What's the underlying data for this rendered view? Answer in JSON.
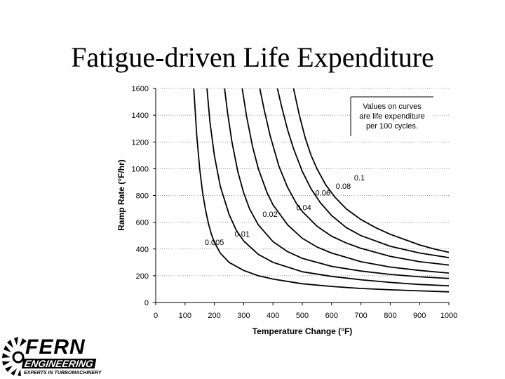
{
  "slide": {
    "title": "Fatigue-driven Life Expenditure"
  },
  "logo": {
    "name": "FERN",
    "subtitle": "ENGINEERING",
    "tagline": "EXPERTS IN TURBOMACHINERY"
  },
  "chart_data": {
    "type": "line",
    "xlabel": "Temperature Change (°F)",
    "ylabel": "Ramp Rate (°F/hr)",
    "xlim": [
      0,
      1000
    ],
    "ylim": [
      0,
      1600
    ],
    "xticks": [
      0,
      100,
      200,
      300,
      400,
      500,
      600,
      700,
      800,
      900,
      1000
    ],
    "yticks": [
      0,
      200,
      400,
      600,
      800,
      1000,
      1200,
      1400,
      1600
    ],
    "grid": "horizontal dotted",
    "annotation": [
      "Values on curves",
      "are life expenditure",
      "per 100 cycles."
    ],
    "series": [
      {
        "name": "0.005",
        "x": [
          130,
          140,
          150,
          160,
          170,
          180,
          190,
          200,
          220,
          250,
          300,
          350,
          400,
          500,
          600,
          700,
          800,
          900,
          1000
        ],
        "y": [
          1600,
          1250,
          1000,
          820,
          690,
          590,
          510,
          450,
          370,
          300,
          240,
          200,
          175,
          140,
          120,
          105,
          95,
          87,
          80
        ]
      },
      {
        "name": "0.01",
        "x": [
          175,
          185,
          200,
          220,
          250,
          275,
          300,
          350,
          400,
          500,
          600,
          700,
          800,
          900,
          1000
        ],
        "y": [
          1600,
          1350,
          1100,
          870,
          660,
          540,
          460,
          360,
          300,
          230,
          195,
          170,
          150,
          135,
          125
        ]
      },
      {
        "name": "0.02",
        "x": [
          235,
          245,
          260,
          280,
          300,
          320,
          350,
          400,
          450,
          500,
          600,
          700,
          800,
          900,
          1000
        ],
        "y": [
          1600,
          1420,
          1200,
          980,
          820,
          700,
          580,
          455,
          380,
          330,
          270,
          235,
          210,
          192,
          180
        ]
      },
      {
        "name": "0.04",
        "x": [
          295,
          310,
          330,
          350,
          380,
          400,
          450,
          500,
          550,
          600,
          700,
          800,
          900,
          1000
        ],
        "y": [
          1600,
          1390,
          1170,
          1000,
          820,
          730,
          580,
          480,
          415,
          370,
          305,
          265,
          240,
          220
        ]
      },
      {
        "name": "0.06",
        "x": [
          355,
          370,
          390,
          420,
          450,
          480,
          500,
          550,
          600,
          650,
          700,
          800,
          900,
          1000
        ],
        "y": [
          1600,
          1440,
          1250,
          1020,
          860,
          740,
          680,
          570,
          495,
          445,
          405,
          345,
          305,
          280
        ]
      },
      {
        "name": "0.08",
        "x": [
          415,
          430,
          450,
          470,
          500,
          530,
          560,
          600,
          650,
          700,
          800,
          900,
          1000
        ],
        "y": [
          1600,
          1460,
          1290,
          1150,
          980,
          850,
          750,
          650,
          560,
          500,
          420,
          370,
          335
        ]
      },
      {
        "name": "0.1",
        "x": [
          470,
          490,
          510,
          530,
          550,
          580,
          610,
          650,
          700,
          750,
          800,
          850,
          900,
          950,
          1000
        ],
        "y": [
          1600,
          1400,
          1230,
          1100,
          1000,
          880,
          790,
          700,
          620,
          560,
          510,
          470,
          430,
          400,
          375
        ]
      }
    ],
    "curve_labels": [
      {
        "series": "0.005",
        "x": 200,
        "y": 450
      },
      {
        "series": "0.01",
        "x": 295,
        "y": 515
      },
      {
        "series": "0.02",
        "x": 390,
        "y": 660
      },
      {
        "series": "0.04",
        "x": 505,
        "y": 710
      },
      {
        "series": "0.06",
        "x": 570,
        "y": 820
      },
      {
        "series": "0.08",
        "x": 640,
        "y": 870
      },
      {
        "series": "0.1",
        "x": 695,
        "y": 935
      }
    ]
  }
}
